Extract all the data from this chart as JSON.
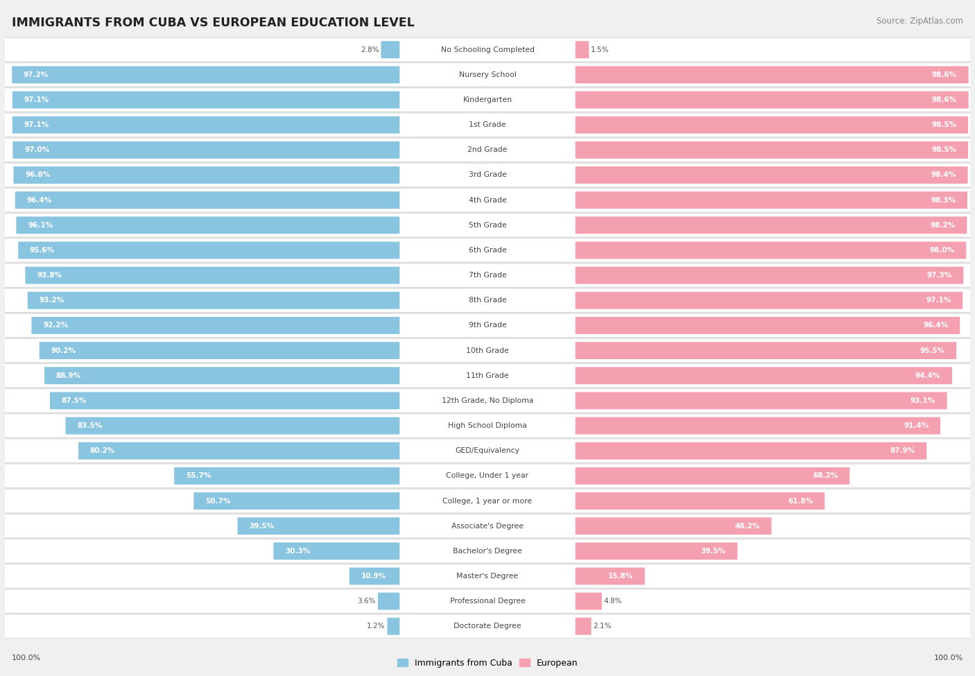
{
  "title": "IMMIGRANTS FROM CUBA VS EUROPEAN EDUCATION LEVEL",
  "source": "Source: ZipAtlas.com",
  "categories": [
    "No Schooling Completed",
    "Nursery School",
    "Kindergarten",
    "1st Grade",
    "2nd Grade",
    "3rd Grade",
    "4th Grade",
    "5th Grade",
    "6th Grade",
    "7th Grade",
    "8th Grade",
    "9th Grade",
    "10th Grade",
    "11th Grade",
    "12th Grade, No Diploma",
    "High School Diploma",
    "GED/Equivalency",
    "College, Under 1 year",
    "College, 1 year or more",
    "Associate's Degree",
    "Bachelor's Degree",
    "Master's Degree",
    "Professional Degree",
    "Doctorate Degree"
  ],
  "cuba_values": [
    2.8,
    97.2,
    97.1,
    97.1,
    97.0,
    96.8,
    96.4,
    96.1,
    95.6,
    93.8,
    93.2,
    92.2,
    90.2,
    88.9,
    87.5,
    83.5,
    80.2,
    55.7,
    50.7,
    39.5,
    30.3,
    10.9,
    3.6,
    1.2
  ],
  "european_values": [
    1.5,
    98.6,
    98.6,
    98.5,
    98.5,
    98.4,
    98.3,
    98.2,
    98.0,
    97.3,
    97.1,
    96.4,
    95.5,
    94.4,
    93.1,
    91.4,
    87.9,
    68.2,
    61.8,
    48.2,
    39.5,
    15.8,
    4.8,
    2.1
  ],
  "cuba_color": "#89c4e1",
  "european_color": "#f4a0b0",
  "background_color": "#f0f0f0",
  "row_bg_color": "#ffffff",
  "row_border_color": "#d8d8d8",
  "title_color": "#222222",
  "source_color": "#888888",
  "label_color": "#444444",
  "value_color_inside": "#ffffff",
  "value_color_outside": "#555555",
  "max_value": 100.0,
  "label_fontsize": 7.8,
  "value_fontsize": 7.5,
  "title_fontsize": 12.5,
  "source_fontsize": 8.5
}
